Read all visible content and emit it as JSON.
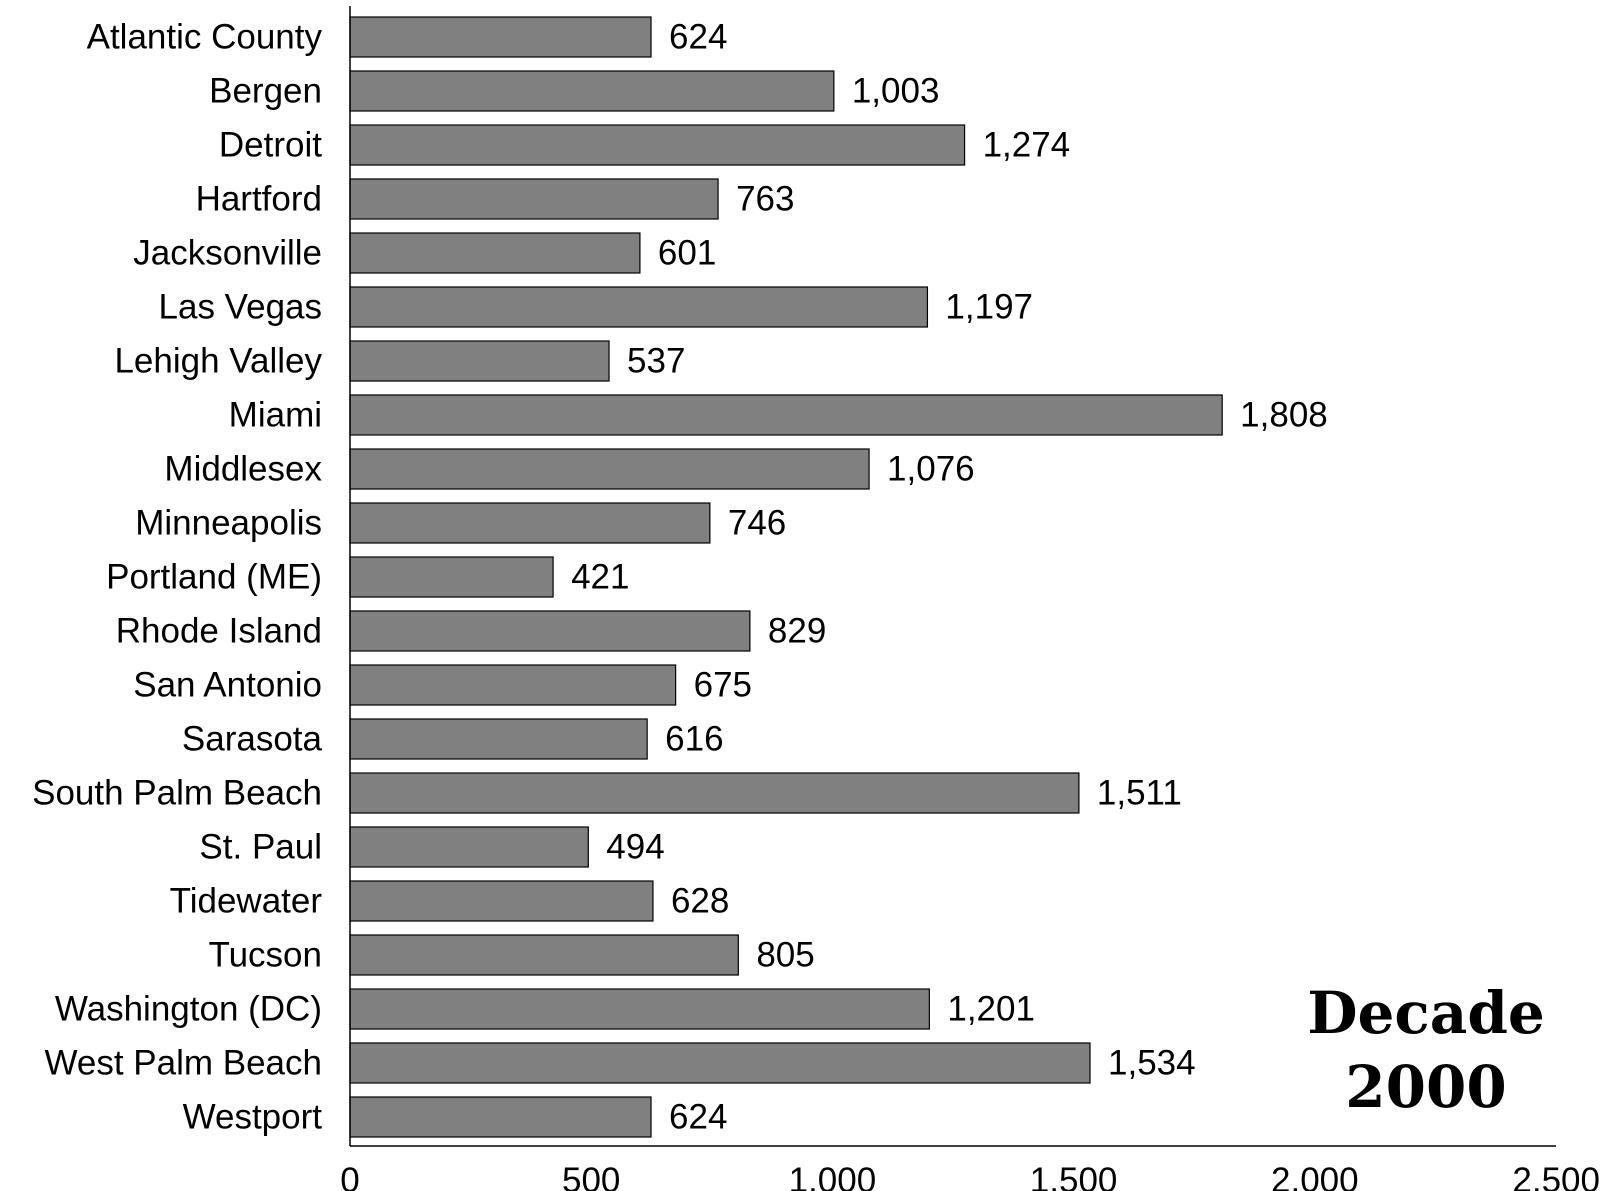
{
  "chart_data": {
    "type": "bar",
    "orientation": "horizontal",
    "categories": [
      "Atlantic County",
      "Bergen",
      "Detroit",
      "Hartford",
      "Jacksonville",
      "Las Vegas",
      "Lehigh Valley",
      "Miami",
      "Middlesex",
      "Minneapolis",
      "Portland (ME)",
      "Rhode Island",
      "San Antonio",
      "Sarasota",
      "South Palm Beach",
      "St. Paul",
      "Tidewater",
      "Tucson",
      "Washington (DC)",
      "West Palm Beach",
      "Westport"
    ],
    "values": [
      624,
      1003,
      1274,
      763,
      601,
      1197,
      537,
      1808,
      1076,
      746,
      421,
      829,
      675,
      616,
      1511,
      494,
      628,
      805,
      1201,
      1534,
      624
    ],
    "value_labels": [
      "624",
      "1,003",
      "1,274",
      "763",
      "601",
      "1,197",
      "537",
      "1,808",
      "1,076",
      "746",
      "421",
      "829",
      "675",
      "616",
      "1,511",
      "494",
      "628",
      "805",
      "1,201",
      "1,534",
      "624"
    ],
    "xlim": [
      0,
      2500
    ],
    "x_ticks": [
      0,
      500,
      1000,
      1500,
      2000,
      2500
    ],
    "x_tick_labels": [
      "0",
      "500",
      "1,000",
      "1,500",
      "2,000",
      "2,500"
    ],
    "title": "",
    "xlabel": "",
    "ylabel": "",
    "annotation": [
      "Decade",
      "2000"
    ],
    "grid": false,
    "legend": "none",
    "bar_color": "#808080",
    "bar_edge_color": "#000000"
  }
}
